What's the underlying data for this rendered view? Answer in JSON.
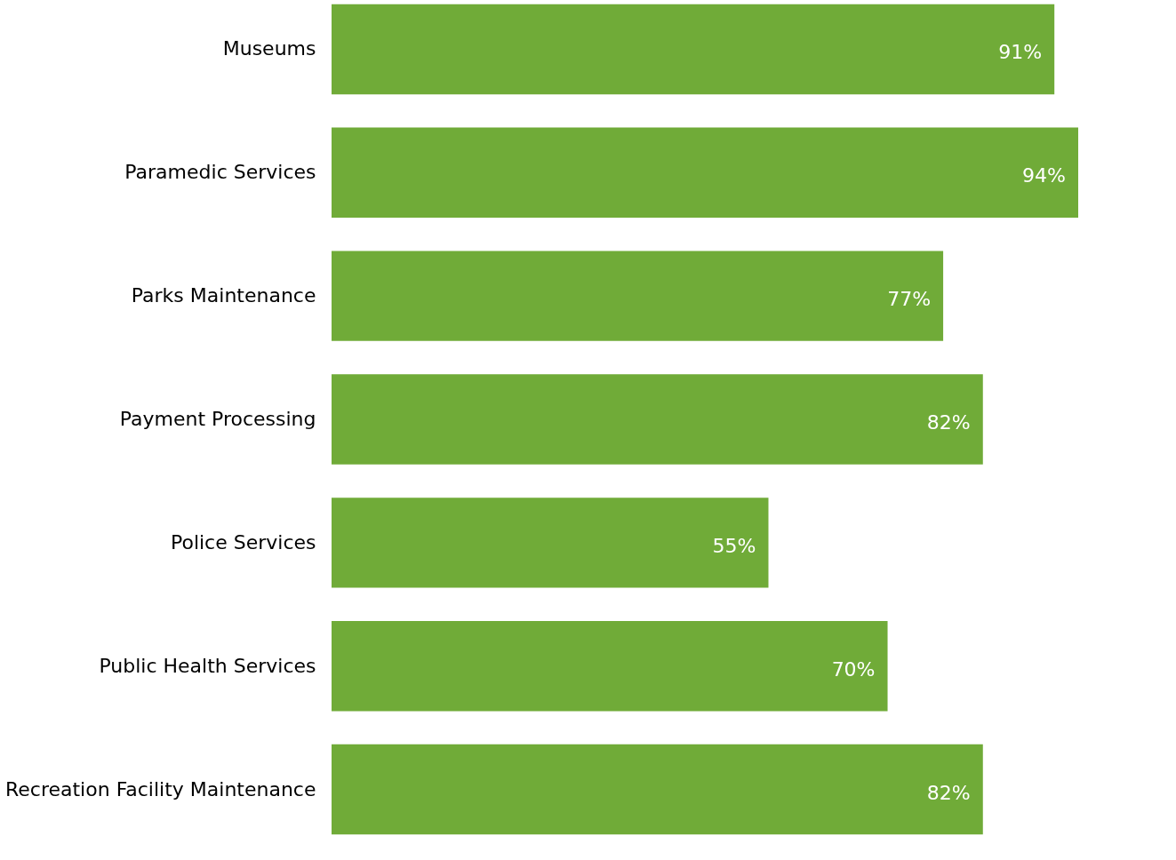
{
  "chart_data": {
    "type": "bar",
    "orientation": "horizontal",
    "categories": [
      "Museums",
      "Paramedic Services",
      "Parks Maintenance",
      "Payment Processing",
      "Police Services",
      "Public Health Services",
      "Recreation Facility Maintenance"
    ],
    "values": [
      91,
      94,
      77,
      82,
      55,
      70,
      82
    ],
    "value_labels": [
      "91%",
      "94%",
      "77%",
      "82%",
      "55%",
      "70%",
      "82%"
    ],
    "color": "#70ab38"
  }
}
